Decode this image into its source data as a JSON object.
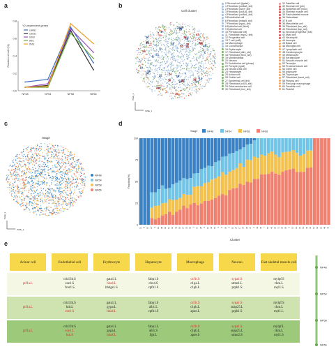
{
  "panels": {
    "a": "a",
    "b": "b",
    "c": "c",
    "d": "d",
    "e": "e"
  },
  "panel_a": {
    "chart_data": {
      "type": "line",
      "title": "",
      "xlabel": "",
      "ylabel": "Fraction of cell (%)",
      "legend_title": "Y2-dependent genes",
      "categories": [
        "NF48",
        "NF54",
        "NF58",
        "NF66"
      ],
      "ylim": [
        0,
        0.8
      ],
      "yticks": [
        "0.8",
        "0.6",
        "0.4",
        "0.2",
        "0.0"
      ],
      "series": [
        {
          "name": "col4a1",
          "color": "#3d6fc0",
          "values": [
            0.1,
            0.13,
            0.73,
            0.32
          ]
        },
        {
          "name": "csmd1",
          "color": "#2b2b2b",
          "values": [
            0.04,
            0.06,
            0.69,
            0.24
          ]
        },
        {
          "name": "tnfrsf",
          "color": "#9a4fbf",
          "values": [
            0.04,
            0.08,
            0.71,
            0.44
          ]
        },
        {
          "name": "tfrb1",
          "color": "#6bab3a",
          "values": [
            0.04,
            0.04,
            0.66,
            0.37
          ]
        },
        {
          "name": "tfnb1",
          "color": "#f0a02a",
          "values": [
            0.04,
            0.05,
            0.77,
            0.54
          ]
        }
      ]
    }
  },
  "panel_b": {
    "title": "Cell cluster",
    "axis_x": "tSNE_1",
    "axis_y": "tSNE_2",
    "legend": [
      {
        "label": "0 Stromal cell (lgals4)",
        "color": "#9fbde0"
      },
      {
        "label": "1 Fibroblast (col6a3_sbl)",
        "color": "#9fbde0"
      },
      {
        "label": "2 Fibroblast (sox9_sbl)",
        "color": "#9fbde0"
      },
      {
        "label": "3 Fibroblast (col1a1_sbl)",
        "color": "#9fbde0"
      },
      {
        "label": "4 Fibroblast (col8a1_sbl)",
        "color": "#9fbde0"
      },
      {
        "label": "5 Endothelial cell",
        "color": "#9fbde0"
      },
      {
        "label": "6 Fibroblast (mfap5_sbl)",
        "color": "#9fbde0"
      },
      {
        "label": "7 Fibroblast (nppc_sbl)",
        "color": "#9fbde0"
      },
      {
        "label": "8 Epithelial cell (ltb4r)",
        "color": "#9fbde0"
      },
      {
        "label": "9 Epithelial cell",
        "color": "#9fbde0"
      },
      {
        "label": "10 Perivascular cell",
        "color": "#9fbde0"
      },
      {
        "label": "11 Fibroblast (rspo2_sbl)",
        "color": "#9fbde0"
      },
      {
        "label": "12 Progenitor cell",
        "color": "#9fbde0"
      },
      {
        "label": "13 T cell (cd8)",
        "color": "#9fbde0"
      },
      {
        "label": "14 Macrophage",
        "color": "#9fbde0"
      },
      {
        "label": "15 Chondrocyte",
        "color": "#9fbde0"
      },
      {
        "label": "16 Erythrocyte",
        "color": "#7fb56a"
      },
      {
        "label": "17 Fibroblast (dlk1_sbl)",
        "color": "#7fb56a"
      },
      {
        "label": "18 Fibroblast (tbx4_sbl)",
        "color": "#7fb56a"
      },
      {
        "label": "19 Myofibroblast",
        "color": "#7fb56a"
      },
      {
        "label": "20 Neuron",
        "color": "#7fb56a"
      },
      {
        "label": "21 Endothelial cell (plvap)",
        "color": "#7fb56a"
      },
      {
        "label": "22 Pericyte (rgs5)",
        "color": "#7fb56a"
      },
      {
        "label": "23 Neural crest cell",
        "color": "#7fb56a"
      },
      {
        "label": "24 Hepatocyte",
        "color": "#7fb56a"
      },
      {
        "label": "25 Acinar cell",
        "color": "#7fb56a"
      },
      {
        "label": "26 Goblet cell",
        "color": "#7fb56a"
      },
      {
        "label": "27 Epidermal cell (krt)",
        "color": "#7fb56a"
      },
      {
        "label": "28 Fibroblast (cd34_sbl)",
        "color": "#7fb56a"
      },
      {
        "label": "29 Enteroendocrine cell",
        "color": "#7fb56a"
      },
      {
        "label": "30 Fibroblast (hox_sbl)",
        "color": "#7fb56a"
      },
      {
        "label": "31 Satellite cell",
        "color": "#f09595"
      },
      {
        "label": "32 Stromal cell (ptn)",
        "color": "#d9534f"
      },
      {
        "label": "33 Epithelial cell (muc)",
        "color": "#d9534f"
      },
      {
        "label": "34 Skeletal muscle cell",
        "color": "#d9534f"
      },
      {
        "label": "35 Fast skeletal muscle",
        "color": "#d9534f"
      },
      {
        "label": "36 Osteoblast",
        "color": "#d9534f"
      },
      {
        "label": "37 B cell",
        "color": "#d9534f"
      },
      {
        "label": "38 Mesothelial cell",
        "color": "#d9534f"
      },
      {
        "label": "39 Fibroblast (tnc_sbl)",
        "color": "#d9534f"
      },
      {
        "label": "40 Fibroblast (fap_sbl)",
        "color": "#d9534f"
      },
      {
        "label": "41 Stromal progenitor (tob)",
        "color": "#d9534f"
      },
      {
        "label": "42 Mast cell",
        "color": "#d9534f"
      },
      {
        "label": "43 Neutrophil",
        "color": "#d9534f"
      },
      {
        "label": "44 Ionocyte",
        "color": "#f4a460"
      },
      {
        "label": "45 Basal cell",
        "color": "#f4a460"
      },
      {
        "label": "46 Microglia cell",
        "color": "#f4a460"
      },
      {
        "label": "47 Lymphatic cell",
        "color": "#f4a460"
      },
      {
        "label": "48 Cardiomyocyte",
        "color": "#f4a460"
      },
      {
        "label": "49 Melanocyte",
        "color": "#f4a460"
      },
      {
        "label": "50 Keratinocyte",
        "color": "#f4a460"
      },
      {
        "label": "51 Smooth muscle cell",
        "color": "#f4a460"
      },
      {
        "label": "52 Tenocyte",
        "color": "#f4a460"
      },
      {
        "label": "53 Proximal tubule cell",
        "color": "#f4a460"
      },
      {
        "label": "54 Germ cell",
        "color": "#f4a460"
      },
      {
        "label": "55 Adipocyte",
        "color": "#f4a460"
      },
      {
        "label": "56 Thymocyte",
        "color": "#f4a460"
      },
      {
        "label": "57 Fibroblast (hand_sbl)",
        "color": "#f4a460"
      },
      {
        "label": "58 Plasma cell",
        "color": "#f4a460"
      },
      {
        "label": "59 Red pulp macrophage",
        "color": "#f4a460"
      },
      {
        "label": "60 Dendritic cell",
        "color": "#f4a460"
      },
      {
        "label": "61 Platelet",
        "color": "#f4a460"
      }
    ]
  },
  "panel_c": {
    "title": "Stage",
    "axis_x": "tSNE_1",
    "axis_y": "tSNE_2",
    "legend": [
      {
        "label": "NF48",
        "color": "#3b82c4"
      },
      {
        "label": "NF54",
        "color": "#72c4e6"
      },
      {
        "label": "NF58",
        "color": "#f2c14e"
      },
      {
        "label": "NF66",
        "color": "#f08070"
      }
    ]
  },
  "panel_d": {
    "chart_data": {
      "type": "bar",
      "stacked": true,
      "legend_title": "Stage",
      "xlabel": "Cluster",
      "ylabel": "Fraction(%)",
      "ylim": [
        0,
        100
      ],
      "yticks": [
        "100",
        "75",
        "50",
        "25",
        "0"
      ],
      "series_names": [
        "NF48",
        "NF54",
        "NF58",
        "NF66"
      ],
      "series_colors": [
        "#3b82c4",
        "#72c4e6",
        "#f2c14e",
        "#f08070"
      ],
      "clusters": [
        "12",
        "8",
        "19",
        "21",
        "9",
        "16",
        "38",
        "30",
        "13",
        "31",
        "46",
        "18",
        "27",
        "23",
        "35",
        "1",
        "37",
        "28",
        "4",
        "15",
        "42",
        "52",
        "0",
        "6",
        "20",
        "3",
        "10",
        "24",
        "17",
        "34",
        "36",
        "47",
        "2",
        "44",
        "40",
        "7",
        "50",
        "43",
        "29",
        "11",
        "39",
        "26",
        "5",
        "51",
        "22",
        "32",
        "53",
        "45",
        "41",
        "14",
        "33",
        "25",
        "48",
        "49"
      ]
    }
  },
  "panel_e": {
    "columns": [
      {
        "header": "Acinar cell"
      },
      {
        "header": "Endothelial cell"
      },
      {
        "header": "Erythrocyte"
      },
      {
        "header": "Hepatocyte"
      },
      {
        "header": "Macrophage"
      },
      {
        "header": "Neuron"
      },
      {
        "header": "Fast skeletal muscle cell"
      }
    ],
    "rows": [
      {
        "stage": "NF48",
        "cells": [
          [
            {
              "t": "ptf1a.L",
              "red": true
            }
          ],
          [
            {
              "t": "cdc13b.S"
            },
            {
              "t": "ece1.S"
            },
            {
              "t": "fcer1.S"
            }
          ],
          [
            {
              "t": "gata1.L"
            },
            {
              "t": "hba4.L",
              "red": true
            },
            {
              "t": "hbbgs1.S"
            }
          ],
          [
            {
              "t": "fabp1.S"
            },
            {
              "t": "cbx4.S"
            },
            {
              "t": "cpfb1.S"
            }
          ],
          [
            {
              "t": "csf1r.S",
              "red": true
            },
            {
              "t": "c1qa.L"
            },
            {
              "t": "c1qb.L"
            }
          ],
          [
            {
              "t": "sypa1.S",
              "red": true
            },
            {
              "t": "stmn1.L"
            },
            {
              "t": "prph1.S"
            }
          ],
          [
            {
              "t": "mylpf.S"
            },
            {
              "t": "ckm.L"
            },
            {
              "t": "myl1.S"
            }
          ]
        ]
      },
      {
        "stage": "NF54",
        "cells": [
          [
            {
              "t": "ptf1a.L",
              "red": true
            }
          ],
          [
            {
              "t": "cdc13b.S"
            },
            {
              "t": "kdr.L"
            },
            {
              "t": "ece1.S",
              "red": true
            }
          ],
          [
            {
              "t": "gata1.L"
            },
            {
              "t": "gypa.L"
            },
            {
              "t": "hba4.L",
              "red": true
            }
          ],
          [
            {
              "t": "fabp1.S"
            },
            {
              "t": "alb1.L"
            },
            {
              "t": "cpfb1.S"
            }
          ],
          [
            {
              "t": "csf1r.S",
              "red": true
            },
            {
              "t": "c1qb.L"
            },
            {
              "t": "apoe.L"
            }
          ],
          [
            {
              "t": "sypa1.S",
              "red": true
            },
            {
              "t": "snap25.L"
            },
            {
              "t": "prph1.S"
            }
          ],
          [
            {
              "t": "mylpf.S"
            },
            {
              "t": "ckm.L"
            },
            {
              "t": "myl1.L"
            }
          ]
        ]
      },
      {
        "stage": "NF58",
        "cells": [
          [
            {
              "t": "ptf1a.L",
              "red": true
            }
          ],
          [
            {
              "t": "cdc13b.S"
            },
            {
              "t": "ece1.L",
              "red": true
            },
            {
              "t": "kdr.S",
              "red": true
            }
          ],
          [
            {
              "t": "gata1.L"
            },
            {
              "t": "gypa.L"
            },
            {
              "t": "hba4.L",
              "red": true
            }
          ],
          [
            {
              "t": "fabp1.L"
            },
            {
              "t": "alb1.S"
            },
            {
              "t": "fgb.L"
            }
          ],
          [
            {
              "t": "csf1r.S",
              "red": true
            },
            {
              "t": "c1qb.L"
            },
            {
              "t": "apoe.S"
            }
          ],
          [
            {
              "t": "sypa1.S",
              "red": true
            },
            {
              "t": "snap25.L"
            },
            {
              "t": "stmn2.S"
            }
          ],
          [
            {
              "t": "mylpf.L"
            },
            {
              "t": "ckm.L"
            },
            {
              "t": "myl1.S"
            }
          ]
        ]
      }
    ],
    "stage_axis": [
      "NF48",
      "NF54",
      "NF58",
      "NF66"
    ]
  }
}
